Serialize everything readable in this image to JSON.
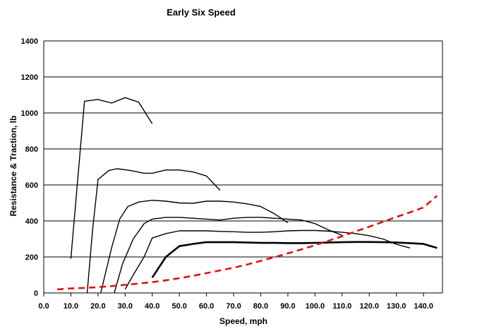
{
  "chart_data": {
    "type": "line",
    "title": "Early Six Speed",
    "xlabel": "Speed, mph",
    "ylabel": "Resistance & Traction, lb",
    "xlim": [
      0,
      147
    ],
    "ylim": [
      0,
      1400
    ],
    "xticks": [
      "0.0",
      "10.0",
      "20.0",
      "30.0",
      "40.0",
      "50.0",
      "60.0",
      "70.0",
      "80.0",
      "90.0",
      "100.0",
      "110.0",
      "120.0",
      "130.0",
      "140.0"
    ],
    "yticks": [
      "0",
      "200",
      "400",
      "600",
      "800",
      "1000",
      "1200",
      "1400"
    ],
    "grid": "horizontal",
    "legend": "none",
    "series": [
      {
        "color": "#000000",
        "width": 1.4,
        "dash": "none",
        "points": [
          [
            10,
            190
          ],
          [
            15,
            1065
          ],
          [
            20,
            1075
          ],
          [
            25,
            1055
          ],
          [
            30,
            1085
          ],
          [
            35,
            1060
          ],
          [
            40,
            940
          ]
        ]
      },
      {
        "color": "#000000",
        "width": 1.4,
        "dash": "none",
        "points": [
          [
            16,
            0
          ],
          [
            18,
            350
          ],
          [
            20,
            630
          ],
          [
            24,
            680
          ],
          [
            27,
            690
          ],
          [
            32,
            680
          ],
          [
            37,
            665
          ],
          [
            40,
            665
          ],
          [
            45,
            683
          ],
          [
            50,
            683
          ],
          [
            55,
            672
          ],
          [
            60,
            650
          ],
          [
            65,
            570
          ]
        ]
      },
      {
        "color": "#000000",
        "width": 1.4,
        "dash": "none",
        "points": [
          [
            21,
            0
          ],
          [
            25,
            250
          ],
          [
            28,
            410
          ],
          [
            31,
            480
          ],
          [
            35,
            505
          ],
          [
            40,
            515
          ],
          [
            45,
            510
          ],
          [
            50,
            500
          ],
          [
            55,
            498
          ],
          [
            60,
            510
          ],
          [
            65,
            510
          ],
          [
            70,
            505
          ],
          [
            75,
            495
          ],
          [
            80,
            480
          ],
          [
            85,
            440
          ],
          [
            90,
            390
          ]
        ]
      },
      {
        "color": "#000000",
        "width": 1.4,
        "dash": "none",
        "points": [
          [
            26,
            0
          ],
          [
            29,
            160
          ],
          [
            33,
            300
          ],
          [
            37,
            385
          ],
          [
            40,
            410
          ],
          [
            45,
            420
          ],
          [
            50,
            420
          ],
          [
            55,
            415
          ],
          [
            60,
            410
          ],
          [
            65,
            405
          ],
          [
            70,
            415
          ],
          [
            75,
            420
          ],
          [
            80,
            420
          ],
          [
            85,
            415
          ],
          [
            90,
            410
          ],
          [
            95,
            405
          ],
          [
            100,
            385
          ],
          [
            105,
            350
          ],
          [
            110,
            320
          ]
        ]
      },
      {
        "color": "#000000",
        "width": 1.4,
        "dash": "none",
        "points": [
          [
            30,
            20
          ],
          [
            33,
            100
          ],
          [
            37,
            200
          ],
          [
            40,
            305
          ],
          [
            45,
            330
          ],
          [
            50,
            345
          ],
          [
            55,
            345
          ],
          [
            60,
            345
          ],
          [
            65,
            342
          ],
          [
            70,
            340
          ],
          [
            75,
            337
          ],
          [
            80,
            337
          ],
          [
            85,
            340
          ],
          [
            90,
            345
          ],
          [
            95,
            347
          ],
          [
            100,
            347
          ],
          [
            105,
            343
          ],
          [
            110,
            337
          ],
          [
            115,
            330
          ],
          [
            120,
            318
          ],
          [
            125,
            300
          ],
          [
            130,
            270
          ],
          [
            135,
            250
          ]
        ]
      },
      {
        "color": "#000000",
        "width": 2.6,
        "dash": "none",
        "points": [
          [
            40,
            85
          ],
          [
            45,
            200
          ],
          [
            50,
            260
          ],
          [
            55,
            272
          ],
          [
            60,
            282
          ],
          [
            65,
            282
          ],
          [
            70,
            282
          ],
          [
            75,
            280
          ],
          [
            80,
            278
          ],
          [
            85,
            278
          ],
          [
            90,
            277
          ],
          [
            95,
            277
          ],
          [
            100,
            278
          ],
          [
            105,
            280
          ],
          [
            110,
            282
          ],
          [
            115,
            283
          ],
          [
            120,
            283
          ],
          [
            125,
            282
          ],
          [
            130,
            280
          ],
          [
            135,
            277
          ],
          [
            140,
            272
          ],
          [
            145,
            250
          ]
        ]
      },
      {
        "color": "#dd1111",
        "width": 2.6,
        "dash": "9,6",
        "points": [
          [
            5,
            20
          ],
          [
            10,
            25
          ],
          [
            15,
            28
          ],
          [
            20,
            32
          ],
          [
            25,
            38
          ],
          [
            30,
            45
          ],
          [
            35,
            52
          ],
          [
            40,
            60
          ],
          [
            45,
            70
          ],
          [
            50,
            82
          ],
          [
            55,
            95
          ],
          [
            60,
            110
          ],
          [
            65,
            125
          ],
          [
            70,
            140
          ],
          [
            75,
            158
          ],
          [
            80,
            178
          ],
          [
            85,
            198
          ],
          [
            90,
            220
          ],
          [
            95,
            242
          ],
          [
            100,
            265
          ],
          [
            105,
            290
          ],
          [
            110,
            315
          ],
          [
            115,
            342
          ],
          [
            120,
            368
          ],
          [
            125,
            395
          ],
          [
            130,
            422
          ],
          [
            135,
            448
          ],
          [
            140,
            475
          ],
          [
            145,
            540
          ]
        ]
      }
    ]
  }
}
